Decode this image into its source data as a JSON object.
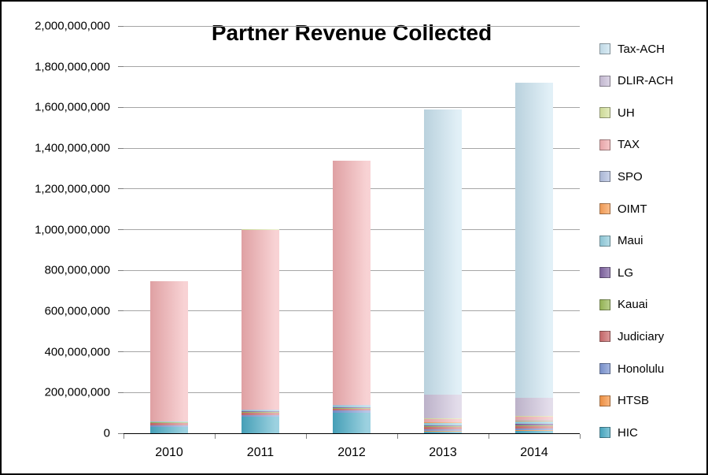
{
  "chart_data": {
    "type": "bar",
    "stacked": true,
    "title": "Partner Revenue Collected",
    "categories": [
      "2010",
      "2011",
      "2012",
      "2013",
      "2014"
    ],
    "ylim": [
      0,
      2000000000
    ],
    "ytick_step": 200000000,
    "grid": true,
    "legend_position": "right",
    "legend_order_top_to_bottom": [
      "Tax-ACH",
      "DLIR-ACH",
      "UH",
      "TAX",
      "SPO",
      "OIMT",
      "Maui",
      "LG",
      "Kauai",
      "Judiciary",
      "Honolulu",
      "HTSB",
      "HIC"
    ],
    "series": [
      {
        "name": "HIC",
        "color": "#4BACC6",
        "values": [
          30000000,
          80000000,
          100000000,
          8000000,
          10000000
        ]
      },
      {
        "name": "HTSB",
        "color": "#F79646",
        "values": [
          2000000,
          2000000,
          2000000,
          3000000,
          4000000
        ]
      },
      {
        "name": "Honolulu",
        "color": "#7D96D3",
        "values": [
          8000000,
          8000000,
          9000000,
          8000000,
          9000000
        ]
      },
      {
        "name": "Judiciary",
        "color": "#CD6C6E",
        "values": [
          10000000,
          10000000,
          10000000,
          12000000,
          12000000
        ]
      },
      {
        "name": "Kauai",
        "color": "#9BBB59",
        "values": [
          3000000,
          4000000,
          4000000,
          4000000,
          5000000
        ]
      },
      {
        "name": "LG",
        "color": "#8064A2",
        "values": [
          2000000,
          3000000,
          4000000,
          5000000,
          6000000
        ]
      },
      {
        "name": "Maui",
        "color": "#93CDDD",
        "values": [
          3000000,
          4000000,
          5000000,
          10000000,
          12000000
        ]
      },
      {
        "name": "OIMT",
        "color": "#F9A159",
        "values": [
          1000000,
          2000000,
          2000000,
          3000000,
          4000000
        ]
      },
      {
        "name": "SPO",
        "color": "#B3C0E0",
        "values": [
          1000000,
          2000000,
          2000000,
          3000000,
          4000000
        ]
      },
      {
        "name": "TAX",
        "color": "#F2AEB1",
        "values": [
          685000000,
          885000000,
          1200000000,
          14000000,
          16000000
        ]
      },
      {
        "name": "UH",
        "color": "#D7E4A0",
        "values": [
          2000000,
          2000000,
          2000000,
          2000000,
          3000000
        ]
      },
      {
        "name": "DLIR-ACH",
        "color": "#CCC1DA",
        "values": [
          0,
          0,
          0,
          118000000,
          90000000
        ]
      },
      {
        "name": "Tax-ACH",
        "color": "#C9E3F0",
        "values": [
          0,
          0,
          0,
          1400000000,
          1545000000
        ]
      }
    ],
    "totals": [
      747000000,
      1002000000,
      1340000000,
      1590000000,
      1720000000
    ]
  }
}
